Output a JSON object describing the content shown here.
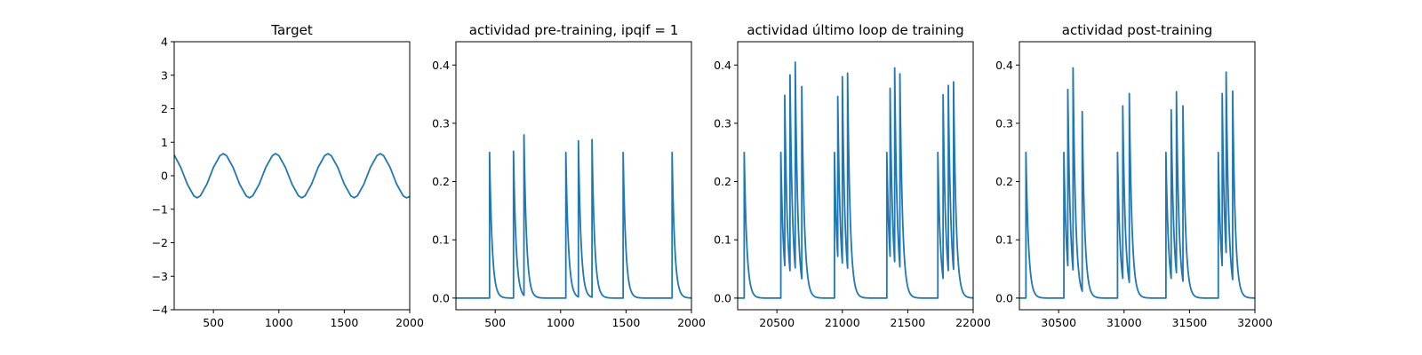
{
  "chart_data": [
    {
      "type": "line",
      "title": "Target",
      "xlim": [
        200,
        2000
      ],
      "ylim": [
        -4,
        4
      ],
      "xticks": [
        500,
        1000,
        1500,
        2000
      ],
      "yticks": [
        -4,
        -3,
        -2,
        -1,
        0,
        1,
        2,
        3,
        4
      ],
      "xtick_labels": [
        "500",
        "1000",
        "1500",
        "2000"
      ],
      "ytick_labels": [
        "−4",
        "−3",
        "−2",
        "−1",
        "0",
        "1",
        "2",
        "3",
        "4"
      ],
      "series_color": "#1f77b4",
      "series": [
        {
          "x": [
            200,
            250,
            300,
            350,
            375,
            400,
            450,
            500,
            550,
            575,
            600,
            650,
            700,
            750,
            775,
            800,
            850,
            900,
            950,
            975,
            1000,
            1050,
            1100,
            1150,
            1175,
            1200,
            1250,
            1300,
            1350,
            1375,
            1400,
            1450,
            1500,
            1550,
            1575,
            1600,
            1650,
            1700,
            1750,
            1775,
            1800,
            1850,
            1900,
            1950,
            1975,
            2000
          ],
          "y": [
            0.62,
            0.25,
            -0.25,
            -0.6,
            -0.66,
            -0.6,
            -0.25,
            0.25,
            0.6,
            0.66,
            0.6,
            0.25,
            -0.25,
            -0.6,
            -0.66,
            -0.6,
            -0.25,
            0.25,
            0.6,
            0.66,
            0.6,
            0.25,
            -0.25,
            -0.6,
            -0.66,
            -0.6,
            -0.25,
            0.25,
            0.6,
            0.66,
            0.6,
            0.25,
            -0.25,
            -0.6,
            -0.66,
            -0.6,
            -0.25,
            0.25,
            0.6,
            0.66,
            0.6,
            0.25,
            -0.25,
            -0.6,
            -0.66,
            -0.62
          ]
        }
      ]
    },
    {
      "type": "line",
      "title": "actividad pre-training, ipqif = 1",
      "xlim": [
        200,
        2000
      ],
      "ylim": [
        -0.02,
        0.44
      ],
      "xticks": [
        500,
        1000,
        1500,
        2000
      ],
      "yticks": [
        0.0,
        0.1,
        0.2,
        0.3,
        0.4
      ],
      "xtick_labels": [
        "500",
        "1000",
        "1500",
        "2000"
      ],
      "ytick_labels": [
        "0.0",
        "0.1",
        "0.2",
        "0.3",
        "0.4"
      ],
      "series_color": "#1f77b4",
      "baseline": 0,
      "spikes": [
        {
          "t": 457,
          "peak": 0.25
        },
        {
          "t": 640,
          "peak": 0.252
        },
        {
          "t": 720,
          "peak": 0.28
        },
        {
          "t": 1040,
          "peak": 0.25
        },
        {
          "t": 1136,
          "peak": 0.27
        },
        {
          "t": 1240,
          "peak": 0.272
        },
        {
          "t": 1478,
          "peak": 0.25
        },
        {
          "t": 1852,
          "peak": 0.25
        }
      ]
    },
    {
      "type": "line",
      "title": "actividad último loop de training",
      "xlim": [
        20200,
        22000
      ],
      "ylim": [
        -0.02,
        0.44
      ],
      "xticks": [
        20500,
        21000,
        21500,
        22000
      ],
      "yticks": [
        0.0,
        0.1,
        0.2,
        0.3,
        0.4
      ],
      "xtick_labels": [
        "20500",
        "21000",
        "21500",
        "22000"
      ],
      "ytick_labels": [
        "0.0",
        "0.1",
        "0.2",
        "0.3",
        "0.4"
      ],
      "series_color": "#1f77b4",
      "baseline": 0,
      "spikes": [
        {
          "t": 20250,
          "peak": 0.25
        },
        {
          "t": 20530,
          "peak": 0.25
        },
        {
          "t": 20560,
          "peak": 0.348
        },
        {
          "t": 20600,
          "peak": 0.383
        },
        {
          "t": 20640,
          "peak": 0.405
        },
        {
          "t": 20690,
          "peak": 0.363
        },
        {
          "t": 20940,
          "peak": 0.25
        },
        {
          "t": 20965,
          "peak": 0.346
        },
        {
          "t": 21000,
          "peak": 0.38
        },
        {
          "t": 21040,
          "peak": 0.386
        },
        {
          "t": 21340,
          "peak": 0.25
        },
        {
          "t": 21365,
          "peak": 0.36
        },
        {
          "t": 21400,
          "peak": 0.395
        },
        {
          "t": 21440,
          "peak": 0.385
        },
        {
          "t": 21730,
          "peak": 0.25
        },
        {
          "t": 21770,
          "peak": 0.349
        },
        {
          "t": 21810,
          "peak": 0.365
        },
        {
          "t": 21850,
          "peak": 0.371
        }
      ]
    },
    {
      "type": "line",
      "title": "actividad post-training",
      "xlim": [
        30200,
        32000
      ],
      "ylim": [
        -0.02,
        0.44
      ],
      "xticks": [
        30500,
        31000,
        31500,
        32000
      ],
      "yticks": [
        0.0,
        0.1,
        0.2,
        0.3,
        0.4
      ],
      "xtick_labels": [
        "30500",
        "31000",
        "31500",
        "32000"
      ],
      "ytick_labels": [
        "0.0",
        "0.1",
        "0.2",
        "0.3",
        "0.4"
      ],
      "series_color": "#1f77b4",
      "baseline": 0,
      "spikes": [
        {
          "t": 30250,
          "peak": 0.25
        },
        {
          "t": 30540,
          "peak": 0.25
        },
        {
          "t": 30570,
          "peak": 0.358
        },
        {
          "t": 30610,
          "peak": 0.395
        },
        {
          "t": 30680,
          "peak": 0.32
        },
        {
          "t": 30950,
          "peak": 0.25
        },
        {
          "t": 30990,
          "peak": 0.33
        },
        {
          "t": 31040,
          "peak": 0.351
        },
        {
          "t": 31320,
          "peak": 0.25
        },
        {
          "t": 31360,
          "peak": 0.323
        },
        {
          "t": 31400,
          "peak": 0.354
        },
        {
          "t": 31450,
          "peak": 0.33
        },
        {
          "t": 31720,
          "peak": 0.25
        },
        {
          "t": 31750,
          "peak": 0.351
        },
        {
          "t": 31780,
          "peak": 0.388
        },
        {
          "t": 31830,
          "peak": 0.355
        }
      ]
    }
  ]
}
